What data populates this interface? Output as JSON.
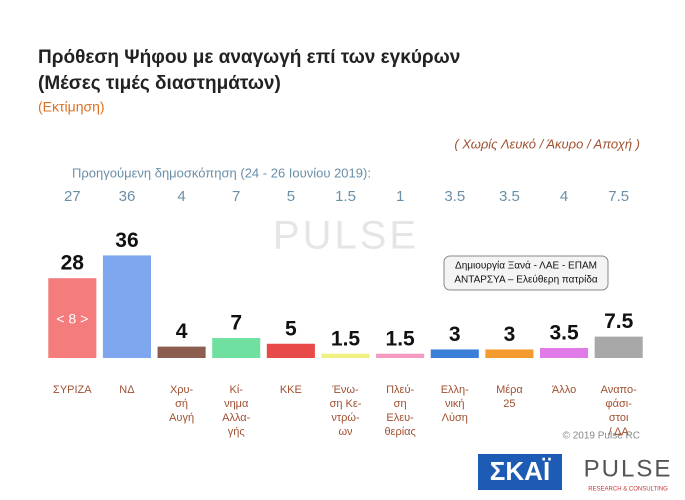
{
  "chart_data": {
    "type": "bar",
    "title": [
      "Πρόθεση Ψήφου με αναγωγή επί των εγκύρων",
      "(Μέσες τιμές διαστημάτων)"
    ],
    "subtitle": "(Εκτίμηση)",
    "note": "( Χωρίς Λευκό / Άκυρο / Αποχή )",
    "previous_label": "Προηγούμενη δημοσκόπηση (24 - 26 Ιουνίου 2019):",
    "previous": [
      27,
      36,
      4,
      7,
      5,
      1.5,
      1,
      3.5,
      3.5,
      4,
      7.5
    ],
    "categories": [
      [
        "ΣΥΡΙΖΑ"
      ],
      [
        "ΝΔ"
      ],
      [
        "Χρυ-",
        "σή",
        "Αυγή"
      ],
      [
        "Κί-",
        "νημα",
        "Αλλα-",
        "γής"
      ],
      [
        "ΚΚΕ"
      ],
      [
        "Ένω-",
        "ση Κε-",
        "ντρώ-",
        "ων"
      ],
      [
        "Πλεύ-",
        "ση",
        "Ελευ-",
        "θερίας"
      ],
      [
        "Ελλη-",
        "νική",
        "Λύση"
      ],
      [
        "Μέρα",
        "25"
      ],
      [
        "Άλλο"
      ],
      [
        "Αναπο-",
        "φάσι-",
        "στοι",
        "/ ΔΑ"
      ]
    ],
    "values": [
      28,
      36,
      4,
      7,
      5,
      1.5,
      1.5,
      3,
      3,
      3.5,
      7.5
    ],
    "colors": [
      "#f47c7c",
      "#7fa7f0",
      "#8b5e50",
      "#6fe0a0",
      "#e84a4a",
      "#f0f080",
      "#f59ac0",
      "#3b7fd8",
      "#f59a30",
      "#e07ae8",
      "#a8a8a8"
    ],
    "ylim": [
      0,
      40
    ],
    "lead_annotation": "< 8 >",
    "other_box": [
      "Δημιουργία Ξανά -  ΛΑΕ - ΕΠΑΜ",
      "ΑΝΤΑΡΣΥΑ – Ελεύθερη πατρίδα"
    ],
    "copyright": "© 2019 Pulse RC",
    "logos": {
      "channel": "ΣΚΑΪ",
      "pollster": "PULSE",
      "pollster_tagline": "RESEARCH & CONSULTING"
    }
  }
}
